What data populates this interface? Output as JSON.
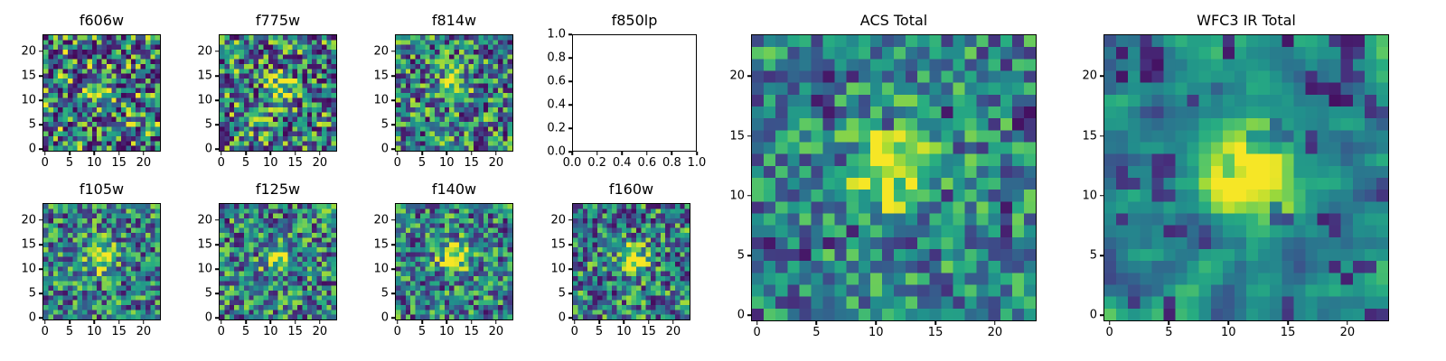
{
  "figure": {
    "background": "#ffffff",
    "text_color": "#000000"
  },
  "chart_data": {
    "type": "heatmap",
    "colormap": "viridis",
    "colormap_stops": [
      "#440154",
      "#472d7b",
      "#3b528b",
      "#2c728e",
      "#21918c",
      "#27ad81",
      "#5ec962",
      "#aadc32",
      "#fde725"
    ],
    "panels": [
      {
        "title": "f606w",
        "kind": "heatmap",
        "grid": 24,
        "seed": 101,
        "base": 0.45,
        "noise": 0.55,
        "dark_prob": 0.1,
        "smooth": 0,
        "clump": false,
        "source": {
          "x": 11.5,
          "y": 12,
          "amp": 0.4,
          "sigma": 1.7
        },
        "x_ticks": [
          0,
          5,
          10,
          15,
          20
        ],
        "y_ticks": [
          0,
          5,
          10,
          15,
          20
        ],
        "x_range": [
          0,
          23
        ],
        "y_range": [
          0,
          23
        ]
      },
      {
        "title": "f775w",
        "kind": "heatmap",
        "grid": 24,
        "seed": 202,
        "base": 0.45,
        "noise": 0.5,
        "dark_prob": 0.1,
        "smooth": 0,
        "clump": false,
        "source": {
          "x": 11.5,
          "y": 12,
          "amp": 0.5,
          "sigma": 1.9
        },
        "x_ticks": [
          0,
          5,
          10,
          15,
          20
        ],
        "y_ticks": [
          0,
          5,
          10,
          15,
          20
        ],
        "x_range": [
          0,
          23
        ],
        "y_range": [
          0,
          23
        ]
      },
      {
        "title": "f814w",
        "kind": "heatmap",
        "grid": 24,
        "seed": 303,
        "base": 0.45,
        "noise": 0.45,
        "dark_prob": 0.08,
        "smooth": 0,
        "clump": false,
        "source": {
          "x": 11.5,
          "y": 12.5,
          "amp": 0.6,
          "sigma": 1.7
        },
        "x_ticks": [
          0,
          5,
          10,
          15,
          20
        ],
        "y_ticks": [
          0,
          5,
          10,
          15,
          20
        ],
        "x_range": [
          0,
          23
        ],
        "y_range": [
          0,
          23
        ]
      },
      {
        "title": "f850lp",
        "kind": "empty",
        "x_ticks": [
          0,
          0.2,
          0.4,
          0.6,
          0.8,
          1.0
        ],
        "y_ticks": [
          0,
          0.2,
          0.4,
          0.6,
          0.8,
          1.0
        ],
        "tick_format": "1dp",
        "x_range": [
          0,
          1
        ],
        "y_range": [
          0,
          1
        ]
      },
      {
        "title": "f105w",
        "kind": "heatmap",
        "grid": 24,
        "seed": 404,
        "base": 0.45,
        "noise": 0.4,
        "dark_prob": 0.06,
        "smooth": 0,
        "clump": false,
        "source": {
          "x": 11.5,
          "y": 12.5,
          "amp": 0.5,
          "sigma": 2.2
        },
        "x_ticks": [
          0,
          5,
          10,
          15,
          20
        ],
        "y_ticks": [
          0,
          5,
          10,
          15,
          20
        ],
        "x_range": [
          0,
          23
        ],
        "y_range": [
          0,
          23
        ]
      },
      {
        "title": "f125w",
        "kind": "heatmap",
        "grid": 24,
        "seed": 505,
        "base": 0.45,
        "noise": 0.42,
        "dark_prob": 0.07,
        "smooth": 0,
        "clump": false,
        "source": {
          "x": 11.5,
          "y": 12,
          "amp": 0.5,
          "sigma": 2.0
        },
        "x_ticks": [
          0,
          5,
          10,
          15,
          20
        ],
        "y_ticks": [
          0,
          5,
          10,
          15,
          20
        ],
        "x_range": [
          0,
          23
        ],
        "y_range": [
          0,
          23
        ]
      },
      {
        "title": "f140w",
        "kind": "heatmap",
        "grid": 24,
        "seed": 606,
        "base": 0.45,
        "noise": 0.4,
        "dark_prob": 0.06,
        "smooth": 0,
        "clump": false,
        "source": {
          "x": 11.5,
          "y": 12.5,
          "amp": 0.55,
          "sigma": 2.2
        },
        "x_ticks": [
          0,
          5,
          10,
          15,
          20
        ],
        "y_ticks": [
          0,
          5,
          10,
          15,
          20
        ],
        "x_range": [
          0,
          23
        ],
        "y_range": [
          0,
          23
        ]
      },
      {
        "title": "f160w",
        "kind": "heatmap",
        "grid": 24,
        "seed": 707,
        "base": 0.45,
        "noise": 0.42,
        "dark_prob": 0.07,
        "smooth": 0,
        "clump": false,
        "source": {
          "x": 11.5,
          "y": 12,
          "amp": 0.62,
          "sigma": 2.0
        },
        "x_ticks": [
          0,
          5,
          10,
          15,
          20
        ],
        "y_ticks": [
          0,
          5,
          10,
          15,
          20
        ],
        "x_range": [
          0,
          23
        ],
        "y_range": [
          0,
          23
        ]
      },
      {
        "title": "ACS Total",
        "kind": "heatmap",
        "grid": 24,
        "seed": 808,
        "base": 0.47,
        "noise": 0.32,
        "dark_prob": 0.05,
        "smooth": 0,
        "clump": false,
        "source": {
          "x": 11.5,
          "y": 12,
          "amp": 0.65,
          "sigma": 2.3
        },
        "x_ticks": [
          0,
          5,
          10,
          15,
          20
        ],
        "y_ticks": [
          0,
          5,
          10,
          15,
          20
        ],
        "x_range": [
          0,
          23
        ],
        "y_range": [
          0,
          23
        ]
      },
      {
        "title": "WFC3 IR Total",
        "kind": "heatmap",
        "grid": 24,
        "seed": 909,
        "base": 0.45,
        "noise": 0.5,
        "dark_prob": 0.08,
        "smooth": 1,
        "clump": true,
        "source": {
          "x": 12,
          "y": 12,
          "amp": 0.8,
          "sigma": 2.5
        },
        "x_ticks": [
          0,
          5,
          10,
          15,
          20
        ],
        "y_ticks": [
          0,
          5,
          10,
          15,
          20
        ],
        "x_range": [
          0,
          23
        ],
        "y_range": [
          0,
          23
        ]
      }
    ]
  }
}
